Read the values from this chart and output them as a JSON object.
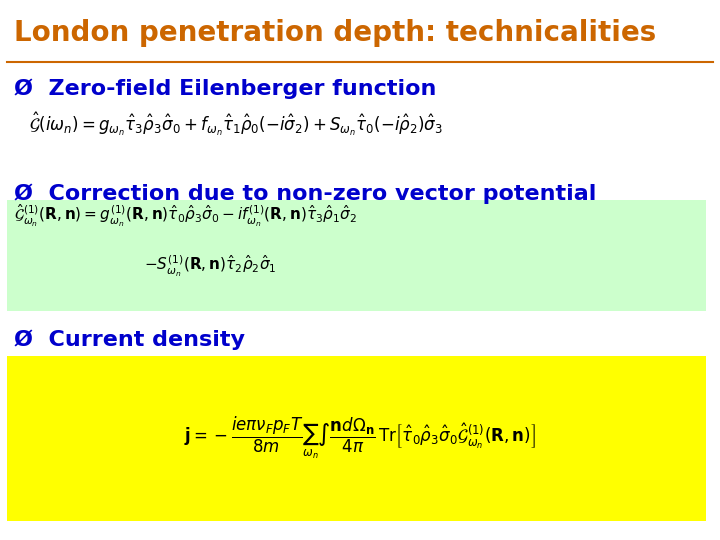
{
  "title": "London penetration depth: technicalities",
  "title_color": "#CC6600",
  "title_fontsize": 20,
  "bg_color": "#FFFFFF",
  "bullet_color": "#0000CC",
  "bullet_symbol": "Ø",
  "bullet1": "Zero-field Eilenberger function",
  "bullet2": "Correction due to non-zero vector potential",
  "bullet3": "Current density",
  "eq1": "$\\hat{\\mathcal{G}}(i\\omega_n) = g_{\\omega_n}\\hat{\\tau}_3\\hat{\\rho}_3\\hat{\\sigma}_0 + f_{\\omega_n}\\hat{\\tau}_1\\hat{\\rho}_0(-i\\hat{\\sigma}_2) + S_{\\omega_n}\\hat{\\tau}_0(-i\\hat{\\rho}_2)\\hat{\\sigma}_3$",
  "eq2_line1": "$\\hat{\\mathcal{G}}^{(1)}_{\\omega_n}(\\mathbf{R},\\mathbf{n}) = g^{(1)}_{\\omega_n}(\\mathbf{R},\\mathbf{n})\\hat{\\tau}_0\\hat{\\rho}_3\\hat{\\sigma}_0 - if^{(1)}_{\\omega_n}(\\mathbf{R},\\mathbf{n})\\hat{\\tau}_3\\hat{\\rho}_1\\hat{\\sigma}_2$",
  "eq2_line2": "$-S^{(1)}_{\\omega_n}(\\mathbf{R},\\mathbf{n})\\hat{\\tau}_2\\hat{\\rho}_2\\hat{\\sigma}_1$",
  "eq3": "$\\mathbf{j} = -\\dfrac{ie\\pi\\nu_F p_F T}{8m}\\sum_{\\omega_n}\\int\\dfrac{\\mathbf{n}d\\Omega_{\\mathbf{n}}}{4\\pi}\\,\\mathrm{Tr}\\left[\\hat{\\tau}_0\\hat{\\rho}_3\\hat{\\sigma}_0\\hat{\\mathcal{G}}^{(1)}_{\\omega_n}(\\mathbf{R},\\mathbf{n})\\right]$",
  "eq2_box_color": "#CCFFCC",
  "eq3_box_color": "#FFFF00",
  "separator_color": "#CC6600",
  "bullet_fontsize": 16,
  "eq_fontsize": 14
}
